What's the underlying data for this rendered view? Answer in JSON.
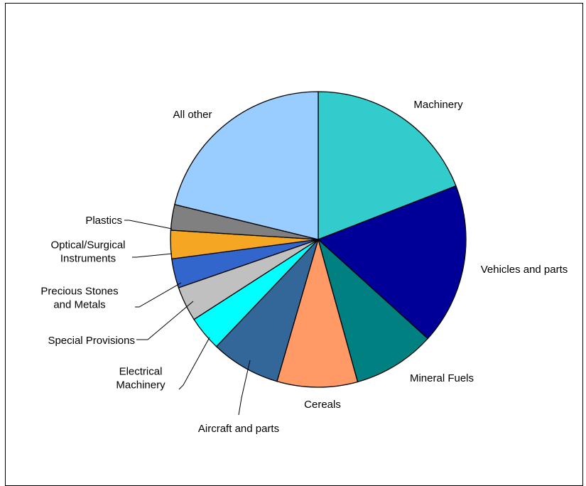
{
  "chart_data": {
    "type": "pie",
    "start_angle_deg": 0,
    "direction": "clockwise",
    "slices": [
      {
        "label": "Machinery",
        "value": 19.1,
        "color": "#33CCCC"
      },
      {
        "label": "Vehicles and parts",
        "value": 17.6,
        "color": "#000099"
      },
      {
        "label": "Mineral Fuels",
        "value": 9.0,
        "color": "#008080"
      },
      {
        "label": "Cereals",
        "value": 8.8,
        "color": "#FF9966"
      },
      {
        "label": "Aircraft and parts",
        "value": 7.6,
        "color": "#336699"
      },
      {
        "label": "Electrical Machinery",
        "value": 3.8,
        "color": "#00FFFF"
      },
      {
        "label": "Special Provisions",
        "value": 3.8,
        "color": "#C0C0C0"
      },
      {
        "label": "Precious Stones and Metals",
        "value": 3.2,
        "color": "#3366CC"
      },
      {
        "label": "Optical/Surgical Instruments",
        "value": 3.1,
        "color": "#F5A623"
      },
      {
        "label": "Plastics",
        "value": 2.8,
        "color": "#808080"
      },
      {
        "label": "All other",
        "value": 21.2,
        "color": "#99CCFF"
      }
    ]
  }
}
